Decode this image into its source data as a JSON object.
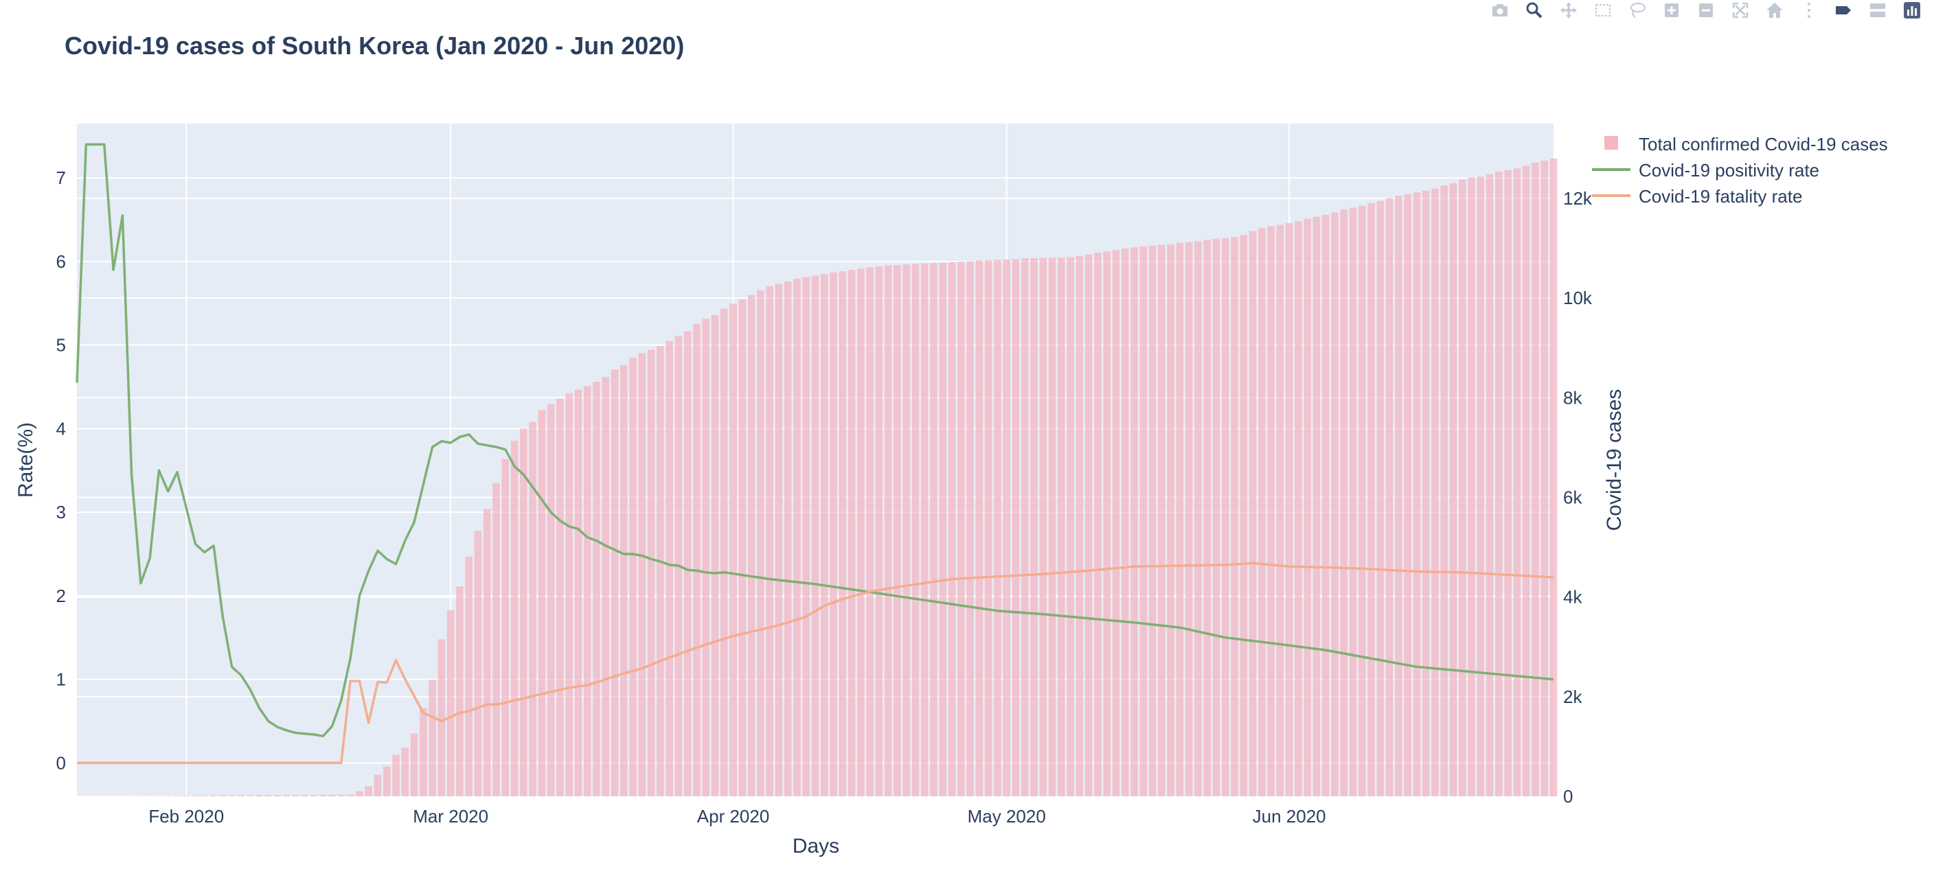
{
  "chart_data": {
    "type": "bar+line",
    "title": "Covid-19 cases of South Korea (Jan 2020 - Jun 2020)",
    "xlabel": "Days",
    "ylabel_left": "Rate(%)",
    "ylabel_right": "Covid-19 cases",
    "x_range": [
      "2020-01-20",
      "2020-06-30"
    ],
    "x_ticks": [
      {
        "date": "2020-02-01",
        "label": "Feb 2020"
      },
      {
        "date": "2020-03-01",
        "label": "Mar 2020"
      },
      {
        "date": "2020-04-01",
        "label": "Apr 2020"
      },
      {
        "date": "2020-05-01",
        "label": "May 2020"
      },
      {
        "date": "2020-06-01",
        "label": "Jun 2020"
      }
    ],
    "ylim_left": [
      -0.4,
      7.65
    ],
    "y_ticks_left": [
      0,
      1,
      2,
      3,
      4,
      5,
      6,
      7
    ],
    "ylim_right": [
      0,
      13500
    ],
    "y_ticks_right": [
      {
        "value": 0,
        "label": "0"
      },
      {
        "value": 2000,
        "label": "2k"
      },
      {
        "value": 4000,
        "label": "4k"
      },
      {
        "value": 6000,
        "label": "6k"
      },
      {
        "value": 8000,
        "label": "8k"
      },
      {
        "value": 10000,
        "label": "10k"
      },
      {
        "value": 12000,
        "label": "12k"
      }
    ],
    "grid": true,
    "legend_position": "top-right",
    "series": [
      {
        "name": "Total confirmed Covid-19 cases",
        "kind": "bar",
        "axis": "right",
        "color": "#f4b6c2",
        "start_date": "2020-01-20",
        "values": [
          1,
          1,
          1,
          1,
          1,
          2,
          3,
          4,
          4,
          4,
          6,
          11,
          12,
          15,
          15,
          16,
          19,
          23,
          24,
          24,
          27,
          27,
          28,
          28,
          28,
          28,
          28,
          29,
          30,
          31,
          31,
          104,
          204,
          433,
          602,
          833,
          977,
          1261,
          1766,
          2337,
          3150,
          3736,
          4212,
          4812,
          5328,
          5766,
          6284,
          6767,
          7134,
          7382,
          7513,
          7755,
          7869,
          7979,
          8086,
          8162,
          8236,
          8320,
          8413,
          8565,
          8652,
          8799,
          8897,
          8961,
          9037,
          9137,
          9241,
          9332,
          9478,
          9583,
          9661,
          9786,
          9887,
          9976,
          10062,
          10156,
          10237,
          10284,
          10331,
          10384,
          10423,
          10450,
          10480,
          10512,
          10537,
          10564,
          10591,
          10613,
          10635,
          10653,
          10661,
          10674,
          10683,
          10694,
          10702,
          10708,
          10718,
          10728,
          10738,
          10752,
          10761,
          10765,
          10774,
          10780,
          10793,
          10801,
          10804,
          10806,
          10810,
          10822,
          10840,
          10874,
          10909,
          10936,
          10962,
          10991,
          11018,
          11037,
          11050,
          11065,
          11078,
          11110,
          11122,
          11142,
          11165,
          11190,
          11206,
          11225,
          11265,
          11344,
          11402,
          11441,
          11468,
          11503,
          11541,
          11590,
          11629,
          11668,
          11719,
          11776,
          11814,
          11852,
          11902,
          11947,
          12003,
          12051,
          12085,
          12121,
          12155,
          12198,
          12257,
          12306,
          12373,
          12421,
          12438,
          12484,
          12535,
          12563,
          12602,
          12653,
          12715,
          12757,
          12800
        ]
      },
      {
        "name": "Covid-19 positivity rate",
        "kind": "line",
        "axis": "left",
        "color": "#7aad6e",
        "points": [
          [
            "2020-01-20",
            4.55
          ],
          [
            "2020-01-21",
            7.4
          ],
          [
            "2020-01-22",
            7.4
          ],
          [
            "2020-01-23",
            7.4
          ],
          [
            "2020-01-24",
            5.9
          ],
          [
            "2020-01-25",
            6.55
          ],
          [
            "2020-01-26",
            3.45
          ],
          [
            "2020-01-27",
            2.15
          ],
          [
            "2020-01-28",
            2.45
          ],
          [
            "2020-01-29",
            3.5
          ],
          [
            "2020-01-30",
            3.25
          ],
          [
            "2020-01-31",
            3.48
          ],
          [
            "2020-02-01",
            3.05
          ],
          [
            "2020-02-02",
            2.62
          ],
          [
            "2020-02-03",
            2.52
          ],
          [
            "2020-02-04",
            2.6
          ],
          [
            "2020-02-05",
            1.75
          ],
          [
            "2020-02-06",
            1.15
          ],
          [
            "2020-02-07",
            1.05
          ],
          [
            "2020-02-08",
            0.88
          ],
          [
            "2020-02-09",
            0.66
          ],
          [
            "2020-02-10",
            0.5
          ],
          [
            "2020-02-11",
            0.43
          ],
          [
            "2020-02-12",
            0.39
          ],
          [
            "2020-02-13",
            0.36
          ],
          [
            "2020-02-14",
            0.35
          ],
          [
            "2020-02-15",
            0.34
          ],
          [
            "2020-02-16",
            0.32
          ],
          [
            "2020-02-17",
            0.44
          ],
          [
            "2020-02-18",
            0.75
          ],
          [
            "2020-02-19",
            1.25
          ],
          [
            "2020-02-20",
            2.0
          ],
          [
            "2020-02-21",
            2.3
          ],
          [
            "2020-02-22",
            2.54
          ],
          [
            "2020-02-23",
            2.44
          ],
          [
            "2020-02-24",
            2.38
          ],
          [
            "2020-02-25",
            2.66
          ],
          [
            "2020-02-26",
            2.88
          ],
          [
            "2020-02-27",
            3.33
          ],
          [
            "2020-02-28",
            3.78
          ],
          [
            "2020-02-29",
            3.85
          ],
          [
            "2020-03-01",
            3.83
          ],
          [
            "2020-03-02",
            3.9
          ],
          [
            "2020-03-03",
            3.93
          ],
          [
            "2020-03-04",
            3.82
          ],
          [
            "2020-03-05",
            3.8
          ],
          [
            "2020-03-06",
            3.78
          ],
          [
            "2020-03-07",
            3.75
          ],
          [
            "2020-03-08",
            3.55
          ],
          [
            "2020-03-09",
            3.45
          ],
          [
            "2020-03-10",
            3.3
          ],
          [
            "2020-03-11",
            3.15
          ],
          [
            "2020-03-12",
            3.0
          ],
          [
            "2020-03-13",
            2.9
          ],
          [
            "2020-03-14",
            2.83
          ],
          [
            "2020-03-15",
            2.8
          ],
          [
            "2020-03-16",
            2.7
          ],
          [
            "2020-03-17",
            2.66
          ],
          [
            "2020-03-18",
            2.6
          ],
          [
            "2020-03-19",
            2.55
          ],
          [
            "2020-03-20",
            2.5
          ],
          [
            "2020-03-21",
            2.5
          ],
          [
            "2020-03-22",
            2.48
          ],
          [
            "2020-03-23",
            2.44
          ],
          [
            "2020-03-24",
            2.41
          ],
          [
            "2020-03-25",
            2.37
          ],
          [
            "2020-03-26",
            2.36
          ],
          [
            "2020-03-27",
            2.31
          ],
          [
            "2020-03-28",
            2.3
          ],
          [
            "2020-03-29",
            2.28
          ],
          [
            "2020-03-30",
            2.27
          ],
          [
            "2020-03-31",
            2.28
          ],
          [
            "2020-04-05",
            2.2
          ],
          [
            "2020-04-10",
            2.14
          ],
          [
            "2020-04-15",
            2.06
          ],
          [
            "2020-04-20",
            1.98
          ],
          [
            "2020-04-25",
            1.9
          ],
          [
            "2020-04-30",
            1.82
          ],
          [
            "2020-05-05",
            1.78
          ],
          [
            "2020-05-10",
            1.73
          ],
          [
            "2020-05-15",
            1.68
          ],
          [
            "2020-05-20",
            1.62
          ],
          [
            "2020-05-25",
            1.5
          ],
          [
            "2020-05-31",
            1.42
          ],
          [
            "2020-06-05",
            1.35
          ],
          [
            "2020-06-10",
            1.25
          ],
          [
            "2020-06-15",
            1.15
          ],
          [
            "2020-06-20",
            1.1
          ],
          [
            "2020-06-25",
            1.05
          ],
          [
            "2020-06-30",
            1.0
          ]
        ]
      },
      {
        "name": "Covid-19 fatality rate",
        "kind": "line",
        "axis": "left",
        "color": "#f4ab8a",
        "points": [
          [
            "2020-01-20",
            0
          ],
          [
            "2020-02-17",
            0
          ],
          [
            "2020-02-18",
            0
          ],
          [
            "2020-02-19",
            0.98
          ],
          [
            "2020-02-20",
            0.98
          ],
          [
            "2020-02-21",
            0.48
          ],
          [
            "2020-02-22",
            0.97
          ],
          [
            "2020-02-23",
            0.96
          ],
          [
            "2020-02-24",
            1.23
          ],
          [
            "2020-02-25",
            1.0
          ],
          [
            "2020-02-26",
            0.8
          ],
          [
            "2020-02-27",
            0.6
          ],
          [
            "2020-02-28",
            0.55
          ],
          [
            "2020-02-29",
            0.5
          ],
          [
            "2020-03-01",
            0.55
          ],
          [
            "2020-03-02",
            0.6
          ],
          [
            "2020-03-03",
            0.62
          ],
          [
            "2020-03-04",
            0.66
          ],
          [
            "2020-03-05",
            0.7
          ],
          [
            "2020-03-06",
            0.7
          ],
          [
            "2020-03-07",
            0.72
          ],
          [
            "2020-03-08",
            0.75
          ],
          [
            "2020-03-09",
            0.77
          ],
          [
            "2020-03-10",
            0.8
          ],
          [
            "2020-03-12",
            0.85
          ],
          [
            "2020-03-14",
            0.9
          ],
          [
            "2020-03-16",
            0.93
          ],
          [
            "2020-03-18",
            1.0
          ],
          [
            "2020-03-20",
            1.07
          ],
          [
            "2020-03-22",
            1.13
          ],
          [
            "2020-03-24",
            1.22
          ],
          [
            "2020-03-26",
            1.3
          ],
          [
            "2020-03-28",
            1.38
          ],
          [
            "2020-03-30",
            1.45
          ],
          [
            "2020-04-01",
            1.52
          ],
          [
            "2020-04-03",
            1.57
          ],
          [
            "2020-04-05",
            1.62
          ],
          [
            "2020-04-07",
            1.68
          ],
          [
            "2020-04-09",
            1.75
          ],
          [
            "2020-04-11",
            1.88
          ],
          [
            "2020-04-13",
            1.96
          ],
          [
            "2020-04-16",
            2.05
          ],
          [
            "2020-04-20",
            2.12
          ],
          [
            "2020-04-25",
            2.2
          ],
          [
            "2020-04-30",
            2.23
          ],
          [
            "2020-05-05",
            2.26
          ],
          [
            "2020-05-10",
            2.3
          ],
          [
            "2020-05-15",
            2.35
          ],
          [
            "2020-05-20",
            2.36
          ],
          [
            "2020-05-25",
            2.37
          ],
          [
            "2020-05-28",
            2.39
          ],
          [
            "2020-06-01",
            2.35
          ],
          [
            "2020-06-05",
            2.34
          ],
          [
            "2020-06-10",
            2.32
          ],
          [
            "2020-06-15",
            2.29
          ],
          [
            "2020-06-20",
            2.28
          ],
          [
            "2020-06-25",
            2.25
          ],
          [
            "2020-06-30",
            2.22
          ]
        ]
      }
    ]
  },
  "legend": {
    "items": [
      {
        "label": "Total confirmed Covid-19 cases"
      },
      {
        "label": "Covid-19 positivity rate"
      },
      {
        "label": "Covid-19 fatality rate"
      }
    ]
  },
  "colors": {
    "plot_bg": "#e5ecf6",
    "grid": "#ffffff",
    "text": "#2a3f5f",
    "bar": "#f4b6c2",
    "positivity": "#7aad6e",
    "fatality": "#f4ab8a"
  },
  "modebar": {
    "icons": [
      "camera-icon",
      "zoom-icon",
      "pan-icon",
      "box-select-icon",
      "lasso-icon",
      "zoom-in-icon",
      "zoom-out-icon",
      "autoscale-icon",
      "reset-axes-icon",
      "spike-lines-icon",
      "hover-closest-icon",
      "hover-compare-icon",
      "plotly-logo-icon"
    ]
  }
}
